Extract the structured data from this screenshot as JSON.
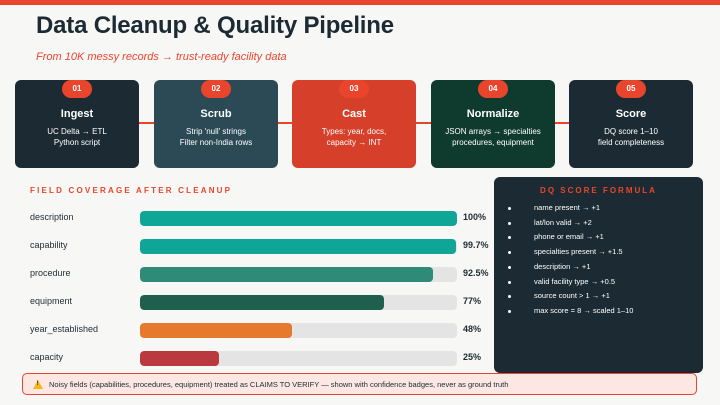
{
  "title": "Data Cleanup & Quality Pipeline",
  "subtitle": "From 10K messy records → trust-ready facility data",
  "colors": {
    "accent": "#e8452c",
    "navy": "#1c2b33"
  },
  "steps": [
    {
      "num": "01",
      "title": "Ingest",
      "desc": "UC Delta → ETL\nPython script",
      "bg": "#1c2b33"
    },
    {
      "num": "02",
      "title": "Scrub",
      "desc": "Strip 'null' strings\nFilter non-India rows",
      "bg": "#2b4a56"
    },
    {
      "num": "03",
      "title": "Cast",
      "desc": "Types: year, docs,\ncapacity → INT",
      "bg": "#d6402a"
    },
    {
      "num": "04",
      "title": "Normalize",
      "desc": "JSON arrays → specialties\nprocedures, equipment",
      "bg": "#0f3a2e"
    },
    {
      "num": "05",
      "title": "Score",
      "desc": "DQ score 1–10\nfield completeness",
      "bg": "#1c2b33"
    }
  ],
  "coverage": {
    "label": "FIELD COVERAGE AFTER CLEANUP",
    "fields": [
      {
        "name": "description",
        "value": "100%",
        "pct": 100,
        "color": "#0fa597"
      },
      {
        "name": "capability",
        "value": "99.7%",
        "pct": 99.7,
        "color": "#0fa597"
      },
      {
        "name": "procedure",
        "value": "92.5%",
        "pct": 92.5,
        "color": "#2e8b78"
      },
      {
        "name": "equipment",
        "value": "77%",
        "pct": 77,
        "color": "#1f5f4e"
      },
      {
        "name": "year_established",
        "value": "48%",
        "pct": 48,
        "color": "#e57a2f"
      },
      {
        "name": "capacity",
        "value": "25%",
        "pct": 25,
        "color": "#b9393f"
      }
    ]
  },
  "formula": {
    "title": "DQ SCORE FORMULA",
    "items": [
      "name present → +1",
      "lat/lon valid → +2",
      "phone or email → +1",
      "specialties present → +1.5",
      "description → +1",
      "valid facility type → +0.5",
      "source count > 1 → +1",
      "max score = 8 → scaled 1–10"
    ]
  },
  "warning": {
    "icon": "warning-icon",
    "text": "Noisy fields (capabilities, procedures, equipment) treated as CLAIMS TO VERIFY — shown with confidence badges, never as ground truth"
  }
}
